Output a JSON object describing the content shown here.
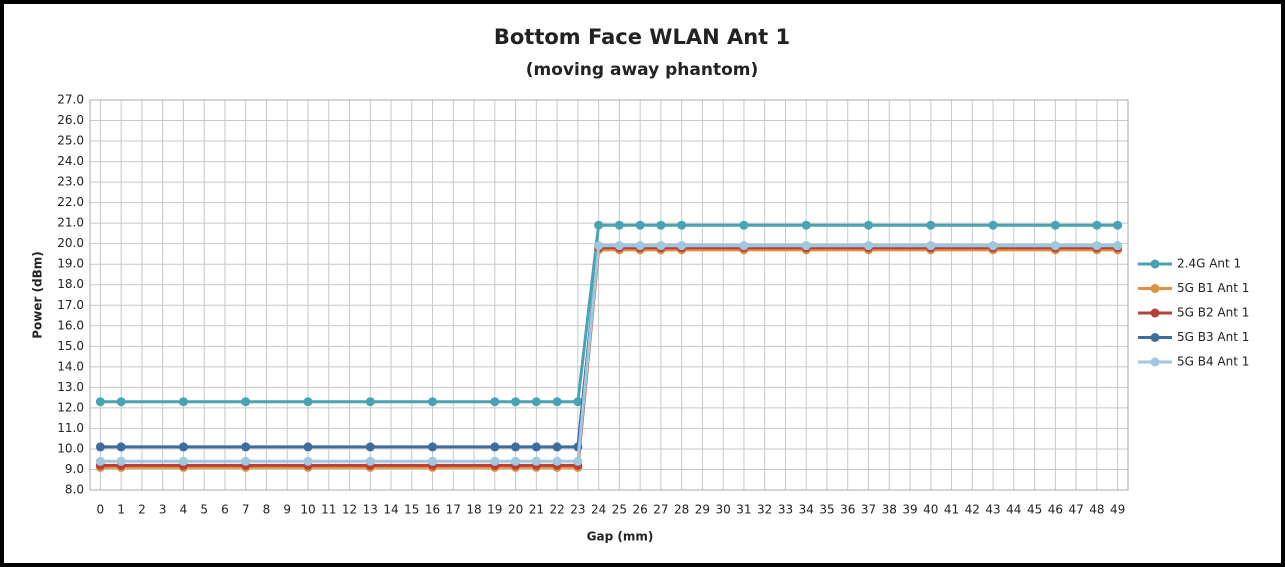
{
  "chart_data": {
    "type": "line",
    "title": "Bottom Face WLAN Ant 1",
    "subtitle": "(moving away phantom)",
    "x_label": "Gap (mm)",
    "y_label": "Power (dBm)",
    "x": [
      0,
      1,
      4,
      7,
      10,
      13,
      16,
      19,
      20,
      21,
      22,
      23,
      24,
      25,
      26,
      27,
      28,
      31,
      34,
      37,
      40,
      43,
      46,
      48,
      49
    ],
    "series": [
      {
        "name": "2.4G Ant 1",
        "color": "#4aa3b3",
        "values": [
          12.3,
          12.3,
          12.3,
          12.3,
          12.3,
          12.3,
          12.3,
          12.3,
          12.3,
          12.3,
          12.3,
          12.3,
          20.9,
          20.9,
          20.9,
          20.9,
          20.9,
          20.9,
          20.9,
          20.9,
          20.9,
          20.9,
          20.9,
          20.9,
          20.9
        ]
      },
      {
        "name": "5G B1 Ant 1",
        "color": "#e0903e",
        "values": [
          9.1,
          9.1,
          9.1,
          9.1,
          9.1,
          9.1,
          9.1,
          9.1,
          9.1,
          9.1,
          9.1,
          9.1,
          19.7,
          19.7,
          19.7,
          19.7,
          19.7,
          19.7,
          19.7,
          19.7,
          19.7,
          19.7,
          19.7,
          19.7,
          19.7
        ]
      },
      {
        "name": "5G B2 Ant 1",
        "color": "#b8403a",
        "values": [
          9.2,
          9.2,
          9.2,
          9.2,
          9.2,
          9.2,
          9.2,
          9.2,
          9.2,
          9.2,
          9.2,
          9.2,
          19.8,
          19.8,
          19.8,
          19.8,
          19.8,
          19.8,
          19.8,
          19.8,
          19.8,
          19.8,
          19.8,
          19.8,
          19.8
        ]
      },
      {
        "name": "5G B3 Ant 1",
        "color": "#3f6b9f",
        "values": [
          10.1,
          10.1,
          10.1,
          10.1,
          10.1,
          10.1,
          10.1,
          10.1,
          10.1,
          10.1,
          10.1,
          10.1,
          19.9,
          19.9,
          19.9,
          19.9,
          19.9,
          19.9,
          19.9,
          19.9,
          19.9,
          19.9,
          19.9,
          19.9,
          19.9
        ]
      },
      {
        "name": "5G B4 Ant 1",
        "color": "#9fc9e0",
        "values": [
          9.4,
          9.4,
          9.4,
          9.4,
          9.4,
          9.4,
          9.4,
          9.4,
          9.4,
          9.4,
          9.4,
          9.4,
          19.9,
          19.9,
          19.9,
          19.9,
          19.9,
          19.9,
          19.9,
          19.9,
          19.9,
          19.9,
          19.9,
          19.9,
          19.9
        ]
      }
    ],
    "xlim": [
      -0.5,
      49.5
    ],
    "xticks": [
      0,
      1,
      2,
      3,
      4,
      5,
      6,
      7,
      8,
      9,
      10,
      11,
      12,
      13,
      14,
      15,
      16,
      17,
      18,
      19,
      20,
      21,
      22,
      23,
      24,
      25,
      26,
      27,
      28,
      29,
      30,
      31,
      32,
      33,
      34,
      35,
      36,
      37,
      38,
      39,
      40,
      41,
      42,
      43,
      44,
      45,
      46,
      47,
      48,
      49
    ],
    "ylim": [
      8,
      27
    ],
    "yticks": [
      {
        "value": 8,
        "label": "8.0"
      },
      {
        "value": 9,
        "label": "9.0"
      },
      {
        "value": 10,
        "label": "10.0"
      },
      {
        "value": 11,
        "label": "11.0"
      },
      {
        "value": 12,
        "label": "12.0"
      },
      {
        "value": 13,
        "label": "13.0"
      },
      {
        "value": 14,
        "label": "14.0"
      },
      {
        "value": 15,
        "label": "15.0"
      },
      {
        "value": 16,
        "label": "16.0"
      },
      {
        "value": 17,
        "label": "17.0"
      },
      {
        "value": 18,
        "label": "18.0"
      },
      {
        "value": 19,
        "label": "19.0"
      },
      {
        "value": 20,
        "label": "20.0"
      },
      {
        "value": 21,
        "label": "21.0"
      },
      {
        "value": 22,
        "label": "22.0"
      },
      {
        "value": 23,
        "label": "23.0"
      },
      {
        "value": 24,
        "label": "24.0"
      },
      {
        "value": 25,
        "label": "25.0"
      },
      {
        "value": 26,
        "label": "26.0"
      },
      {
        "value": 27,
        "label": "27.0"
      }
    ],
    "grid": true,
    "legend": "right"
  }
}
